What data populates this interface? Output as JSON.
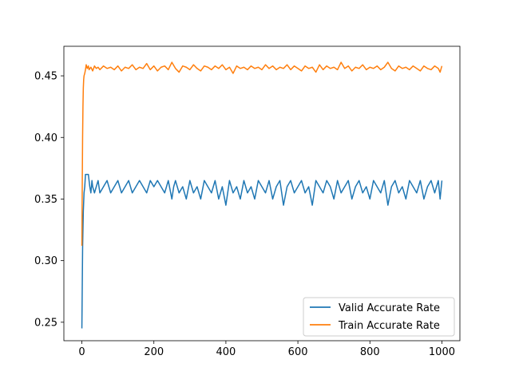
{
  "chart_data": {
    "type": "line",
    "title": "",
    "xlabel": "",
    "ylabel": "",
    "xlim": [
      -50,
      1050
    ],
    "ylim": [
      0.235,
      0.474
    ],
    "xticks": [
      0,
      200,
      400,
      600,
      800,
      1000
    ],
    "yticks": [
      0.25,
      0.3,
      0.35,
      0.4,
      0.45
    ],
    "xtick_labels": [
      "0",
      "200",
      "400",
      "600",
      "800",
      "1000"
    ],
    "ytick_labels": [
      "0.25",
      "0.30",
      "0.35",
      "0.40",
      "0.45"
    ],
    "grid": false,
    "legend_position": "lower-right",
    "series": [
      {
        "name": "Valid Accurate Rate",
        "color": "#1f77b4",
        "x": [
          0,
          2,
          4,
          6,
          8,
          10,
          12,
          15,
          18,
          20,
          22,
          25,
          28,
          30,
          35,
          40,
          45,
          50,
          60,
          70,
          80,
          90,
          100,
          110,
          120,
          130,
          140,
          150,
          160,
          170,
          180,
          190,
          200,
          210,
          220,
          230,
          240,
          250,
          255,
          260,
          270,
          280,
          290,
          300,
          310,
          320,
          330,
          340,
          350,
          360,
          370,
          380,
          390,
          400,
          410,
          420,
          430,
          440,
          450,
          460,
          470,
          480,
          490,
          500,
          510,
          520,
          530,
          540,
          550,
          560,
          570,
          580,
          590,
          600,
          610,
          620,
          630,
          640,
          650,
          660,
          670,
          680,
          690,
          700,
          710,
          720,
          730,
          740,
          750,
          760,
          770,
          780,
          790,
          800,
          810,
          820,
          830,
          840,
          850,
          860,
          870,
          880,
          890,
          900,
          910,
          920,
          930,
          940,
          950,
          960,
          970,
          980,
          990,
          995,
          1000
        ],
        "values": [
          0.245,
          0.31,
          0.34,
          0.355,
          0.36,
          0.37,
          0.37,
          0.37,
          0.37,
          0.365,
          0.36,
          0.355,
          0.365,
          0.36,
          0.355,
          0.36,
          0.365,
          0.355,
          0.36,
          0.365,
          0.355,
          0.36,
          0.365,
          0.355,
          0.36,
          0.365,
          0.355,
          0.36,
          0.365,
          0.36,
          0.355,
          0.365,
          0.36,
          0.365,
          0.36,
          0.355,
          0.365,
          0.35,
          0.36,
          0.365,
          0.355,
          0.36,
          0.35,
          0.365,
          0.355,
          0.36,
          0.35,
          0.365,
          0.36,
          0.355,
          0.365,
          0.35,
          0.36,
          0.345,
          0.365,
          0.355,
          0.36,
          0.35,
          0.365,
          0.355,
          0.36,
          0.35,
          0.365,
          0.36,
          0.355,
          0.365,
          0.35,
          0.36,
          0.365,
          0.345,
          0.36,
          0.365,
          0.355,
          0.36,
          0.365,
          0.355,
          0.36,
          0.345,
          0.365,
          0.36,
          0.355,
          0.365,
          0.36,
          0.35,
          0.365,
          0.355,
          0.36,
          0.365,
          0.35,
          0.36,
          0.365,
          0.355,
          0.36,
          0.35,
          0.365,
          0.36,
          0.355,
          0.365,
          0.345,
          0.36,
          0.365,
          0.355,
          0.36,
          0.35,
          0.365,
          0.36,
          0.355,
          0.365,
          0.35,
          0.36,
          0.365,
          0.355,
          0.365,
          0.35,
          0.365
        ]
      },
      {
        "name": "Train Accurate Rate",
        "color": "#ff7f0e",
        "x": [
          0,
          1,
          2,
          3,
          4,
          5,
          6,
          8,
          10,
          12,
          15,
          18,
          20,
          25,
          30,
          35,
          40,
          45,
          50,
          60,
          70,
          80,
          90,
          100,
          110,
          120,
          130,
          140,
          150,
          160,
          170,
          180,
          190,
          200,
          210,
          220,
          230,
          240,
          250,
          260,
          270,
          280,
          290,
          300,
          310,
          320,
          330,
          340,
          350,
          360,
          370,
          380,
          390,
          400,
          410,
          420,
          430,
          440,
          450,
          460,
          470,
          480,
          490,
          500,
          510,
          520,
          530,
          540,
          550,
          560,
          570,
          580,
          590,
          600,
          610,
          620,
          630,
          640,
          650,
          660,
          670,
          680,
          690,
          700,
          710,
          720,
          730,
          740,
          750,
          760,
          770,
          780,
          790,
          800,
          810,
          820,
          830,
          840,
          850,
          860,
          870,
          880,
          890,
          900,
          910,
          920,
          930,
          940,
          950,
          960,
          970,
          980,
          990,
          995,
          1000
        ],
        "values": [
          0.312,
          0.36,
          0.4,
          0.425,
          0.44,
          0.447,
          0.45,
          0.452,
          0.455,
          0.459,
          0.456,
          0.458,
          0.455,
          0.457,
          0.454,
          0.458,
          0.456,
          0.457,
          0.455,
          0.458,
          0.456,
          0.457,
          0.455,
          0.458,
          0.454,
          0.457,
          0.456,
          0.459,
          0.455,
          0.457,
          0.456,
          0.46,
          0.455,
          0.458,
          0.454,
          0.457,
          0.458,
          0.455,
          0.461,
          0.456,
          0.453,
          0.458,
          0.457,
          0.455,
          0.459,
          0.456,
          0.454,
          0.458,
          0.457,
          0.455,
          0.458,
          0.456,
          0.459,
          0.455,
          0.457,
          0.452,
          0.458,
          0.456,
          0.457,
          0.455,
          0.458,
          0.456,
          0.457,
          0.455,
          0.459,
          0.456,
          0.458,
          0.455,
          0.457,
          0.456,
          0.459,
          0.455,
          0.458,
          0.456,
          0.454,
          0.458,
          0.456,
          0.457,
          0.453,
          0.459,
          0.455,
          0.458,
          0.456,
          0.457,
          0.455,
          0.461,
          0.456,
          0.458,
          0.454,
          0.457,
          0.456,
          0.459,
          0.455,
          0.457,
          0.456,
          0.458,
          0.455,
          0.457,
          0.461,
          0.456,
          0.454,
          0.458,
          0.456,
          0.457,
          0.455,
          0.458,
          0.456,
          0.454,
          0.458,
          0.456,
          0.455,
          0.458,
          0.456,
          0.453,
          0.458
        ]
      }
    ]
  }
}
